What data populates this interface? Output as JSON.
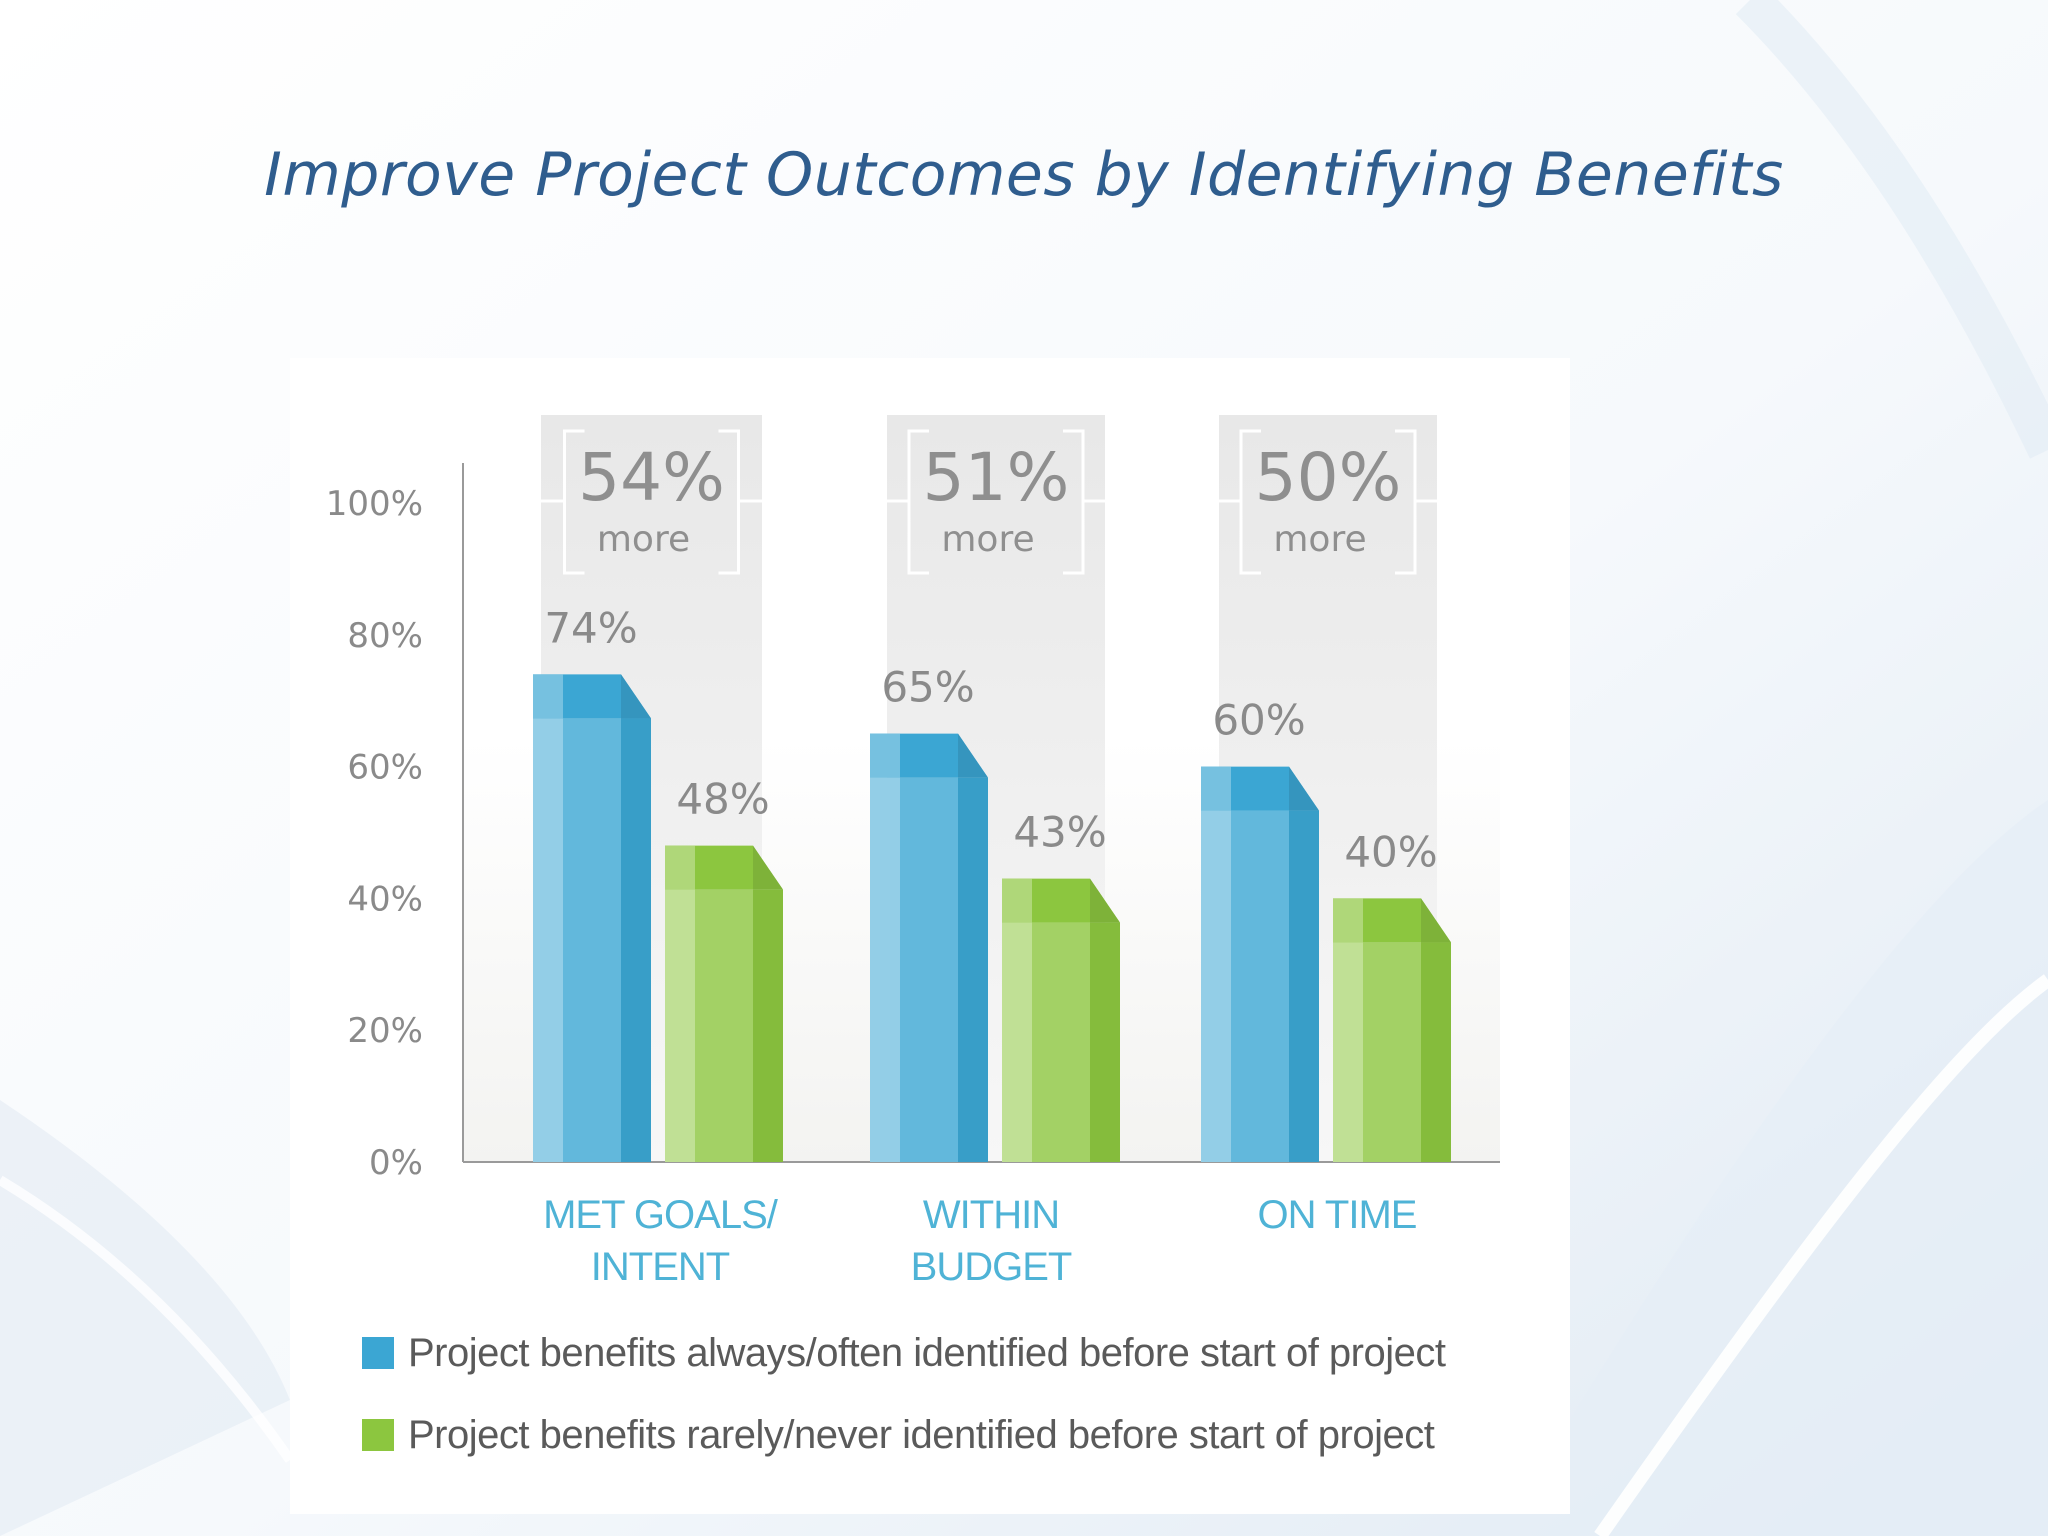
{
  "slide": {
    "title": "Improve Project Outcomes by Identifying Benefits"
  },
  "colors": {
    "title": "#2f5d8e",
    "series_1": "#3ba6d3",
    "series_2": "#8cc63f",
    "category_text": "#4fb3d6"
  },
  "chart_data": {
    "type": "bar",
    "title": "Improve Project Outcomes by Identifying Benefits",
    "categories": [
      [
        "MET GOALS/",
        "INTENT"
      ],
      [
        "WITHIN",
        "BUDGET"
      ],
      [
        "ON TIME"
      ]
    ],
    "series": [
      {
        "name": "Project benefits always/often identified before start of project",
        "values": [
          74,
          65,
          60
        ],
        "color": "#3ba6d3"
      },
      {
        "name": "Project benefits rarely/never identified before start of project",
        "values": [
          48,
          43,
          40
        ],
        "color": "#8cc63f"
      }
    ],
    "value_labels": [
      [
        "74%",
        "65%",
        "60%"
      ],
      [
        "48%",
        "43%",
        "40%"
      ]
    ],
    "differences": [
      {
        "value": "54%",
        "text": "more"
      },
      {
        "value": "51%",
        "text": "more"
      },
      {
        "value": "50%",
        "text": "more"
      }
    ],
    "yticks": [
      "0%",
      "20%",
      "40%",
      "60%",
      "80%",
      "100%"
    ],
    "ylim": [
      0,
      100
    ],
    "grid": false,
    "legend_position": "bottom"
  }
}
